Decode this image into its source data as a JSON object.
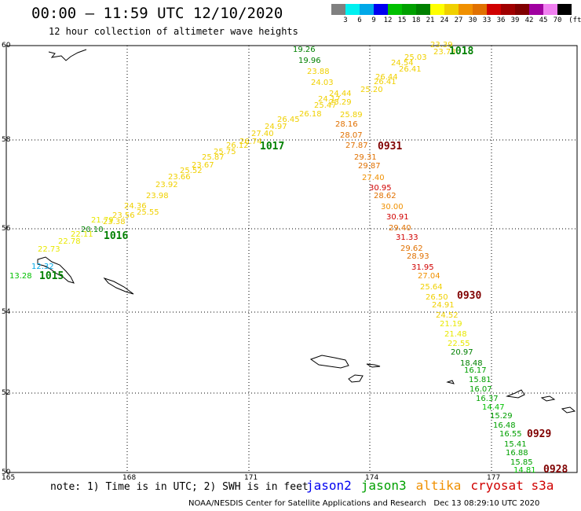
{
  "header": {
    "title": "00:00 – 11:59 UTC 12/10/2020",
    "subtitle": "12 hour collection of altimeter wave heights"
  },
  "legend": {
    "unit": "(ft)",
    "colors": [
      "#808080",
      "#00f0f0",
      "#00a8e8",
      "#0000f0",
      "#00c000",
      "#00a000",
      "#008000",
      "#ffff00",
      "#f0d000",
      "#f09000",
      "#e07000",
      "#d00000",
      "#a00000",
      "#800000",
      "#a000a0",
      "#f080f0",
      "#000000"
    ],
    "labels": [
      "3",
      "6",
      "9",
      "12",
      "15",
      "18",
      "21",
      "24",
      "27",
      "30",
      "33",
      "36",
      "39",
      "42",
      "45",
      "70"
    ]
  },
  "axes": {
    "lon_labels": [
      "165",
      "168",
      "171",
      "174",
      "177"
    ],
    "lat_labels": [
      "60",
      "58",
      "56",
      "54",
      "52",
      "50"
    ]
  },
  "passes": [
    {
      "id": "1018",
      "color": "#008000"
    },
    {
      "id": "1017",
      "color": "#008000"
    },
    {
      "id": "1016",
      "color": "#008000"
    },
    {
      "id": "1015",
      "color": "#008000"
    },
    {
      "id": "0931",
      "color": "#800000"
    },
    {
      "id": "0930",
      "color": "#800000"
    },
    {
      "id": "0929",
      "color": "#800000"
    },
    {
      "id": "0928",
      "color": "#800000"
    }
  ],
  "observations": [
    {
      "v": "23.39",
      "color": "#f0d000"
    },
    {
      "v": "23.73",
      "color": "#f0d000"
    },
    {
      "v": "25.03",
      "color": "#f0d000"
    },
    {
      "v": "24.54",
      "color": "#f0d000"
    },
    {
      "v": "26.41",
      "color": "#f0d000"
    },
    {
      "v": "26.44",
      "color": "#f0d000"
    },
    {
      "v": "26.41",
      "color": "#f0d000"
    },
    {
      "v": "25.20",
      "color": "#f0d000"
    },
    {
      "v": "24.44",
      "color": "#f0d000"
    },
    {
      "v": "24.17",
      "color": "#f0d000"
    },
    {
      "v": "25.29",
      "color": "#f0d000"
    },
    {
      "v": "25.47",
      "color": "#f0d000"
    },
    {
      "v": "26.18",
      "color": "#f0d000"
    },
    {
      "v": "26.45",
      "color": "#f0d000"
    },
    {
      "v": "24.97",
      "color": "#f0d000"
    },
    {
      "v": "27.40",
      "color": "#f0d000"
    },
    {
      "v": "26.74",
      "color": "#f0d000"
    },
    {
      "v": "26.12",
      "color": "#f0d000"
    },
    {
      "v": "25.75",
      "color": "#f0d000"
    },
    {
      "v": "25.87",
      "color": "#f0d000"
    },
    {
      "v": "23.67",
      "color": "#f0d000"
    },
    {
      "v": "25.52",
      "color": "#f0d000"
    },
    {
      "v": "23.66",
      "color": "#f0d000"
    },
    {
      "v": "23.92",
      "color": "#f0d000"
    },
    {
      "v": "23.98",
      "color": "#f0d000"
    },
    {
      "v": "25.55",
      "color": "#f0d000"
    },
    {
      "v": "24.36",
      "color": "#f0d000"
    },
    {
      "v": "23.56",
      "color": "#f0d000"
    },
    {
      "v": "23.38",
      "color": "#f0d000"
    },
    {
      "v": "21.79",
      "color": "#e8e800"
    },
    {
      "v": "20.10",
      "color": "#008000"
    },
    {
      "v": "22.11",
      "color": "#e8e800"
    },
    {
      "v": "22.78",
      "color": "#e8e800"
    },
    {
      "v": "22.73",
      "color": "#e8e800"
    },
    {
      "v": "12.32",
      "color": "#00a8e8"
    },
    {
      "v": "13.28",
      "color": "#00c000"
    },
    {
      "v": "19.26",
      "color": "#008000"
    },
    {
      "v": "19.96",
      "color": "#008000"
    },
    {
      "v": "23.88",
      "color": "#f0d000"
    },
    {
      "v": "24.03",
      "color": "#f0d000"
    },
    {
      "v": "25.89",
      "color": "#f0d000"
    },
    {
      "v": "28.16",
      "color": "#e07000"
    },
    {
      "v": "28.07",
      "color": "#e07000"
    },
    {
      "v": "27.87",
      "color": "#e07000"
    },
    {
      "v": "29.31",
      "color": "#e07000"
    },
    {
      "v": "29.87",
      "color": "#e07000"
    },
    {
      "v": "27.40",
      "color": "#f09000"
    },
    {
      "v": "30.95",
      "color": "#d00000"
    },
    {
      "v": "28.62",
      "color": "#e07000"
    },
    {
      "v": "30.00",
      "color": "#f09000"
    },
    {
      "v": "30.91",
      "color": "#d00000"
    },
    {
      "v": "29.40",
      "color": "#e07000"
    },
    {
      "v": "31.33",
      "color": "#d00000"
    },
    {
      "v": "29.62",
      "color": "#e07000"
    },
    {
      "v": "28.93",
      "color": "#e07000"
    },
    {
      "v": "31.95",
      "color": "#d00000"
    },
    {
      "v": "27.04",
      "color": "#f09000"
    },
    {
      "v": "25.64",
      "color": "#f0d000"
    },
    {
      "v": "26.50",
      "color": "#f0d000"
    },
    {
      "v": "24.91",
      "color": "#f0d000"
    },
    {
      "v": "24.52",
      "color": "#f0d000"
    },
    {
      "v": "21.19",
      "color": "#e8e800"
    },
    {
      "v": "21.48",
      "color": "#e8e800"
    },
    {
      "v": "22.55",
      "color": "#e8e800"
    },
    {
      "v": "20.97",
      "color": "#008000"
    },
    {
      "v": "18.48",
      "color": "#008000"
    },
    {
      "v": "16.17",
      "color": "#00a000"
    },
    {
      "v": "15.81",
      "color": "#00a000"
    },
    {
      "v": "16.07",
      "color": "#00a000"
    },
    {
      "v": "16.37",
      "color": "#00a000"
    },
    {
      "v": "14.47",
      "color": "#00c000"
    },
    {
      "v": "15.29",
      "color": "#00a000"
    },
    {
      "v": "16.48",
      "color": "#00a000"
    },
    {
      "v": "16.55",
      "color": "#00a000"
    },
    {
      "v": "15.41",
      "color": "#00a000"
    },
    {
      "v": "16.88",
      "color": "#00a000"
    },
    {
      "v": "15.85",
      "color": "#00a000"
    },
    {
      "v": "14.81",
      "color": "#00c000"
    }
  ],
  "footer": {
    "note": "note: 1) Time is in UTC; 2) SWH is in feet",
    "satellites": [
      {
        "name": "jason2",
        "color": "#0000f0"
      },
      {
        "name": "jason3",
        "color": "#00a000"
      },
      {
        "name": "altika",
        "color": "#f09000"
      },
      {
        "name": "cryosat s3a",
        "color": "#d00000"
      }
    ],
    "credit": "NOAA/NESDIS Center for Satellite Applications and Research",
    "timestamp": "Dec 13 08:29:10 UTC 2020"
  }
}
